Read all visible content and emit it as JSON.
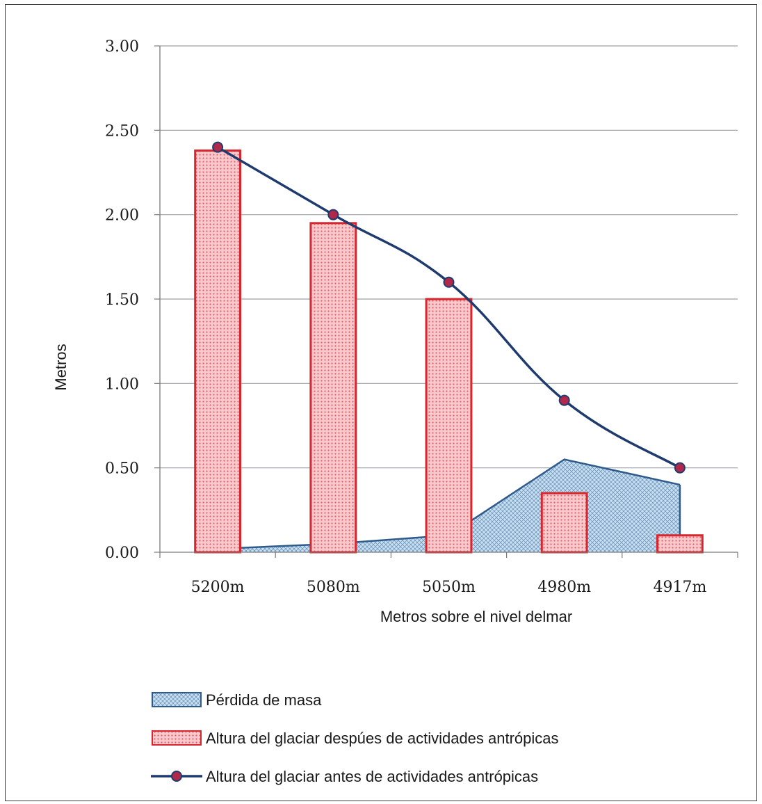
{
  "chart_data": {
    "type": "bar",
    "categories": [
      "5200m",
      "5080m",
      "5050m",
      "4980m",
      "4917m"
    ],
    "series": [
      {
        "name": "Pérdida de masa",
        "kind": "area",
        "values": [
          0.02,
          0.05,
          0.1,
          0.55,
          0.4
        ],
        "color": "#2f5b8c",
        "fill": "#c9dff0"
      },
      {
        "name": "Altura del glaciar despúes de actividades antrópicas",
        "kind": "bar",
        "values": [
          2.38,
          1.95,
          1.5,
          0.35,
          0.1
        ],
        "color": "#d7262e",
        "fill": "#f4b7bb"
      },
      {
        "name": "Altura del glaciar antes de actividades antrópicas",
        "kind": "line",
        "values": [
          2.4,
          2.0,
          1.6,
          0.9,
          0.5
        ],
        "color": "#1f3b6e",
        "marker": "#b0284a"
      }
    ],
    "yticks": [
      "0.00",
      "0.50",
      "1.00",
      "1.50",
      "2.00",
      "2.50",
      "3.00"
    ],
    "ylim": [
      0,
      3
    ],
    "ylabel": "Metros",
    "xlabel": "Metros sobre el nivel delmar",
    "grid": true,
    "legend_position": "bottom-left"
  }
}
